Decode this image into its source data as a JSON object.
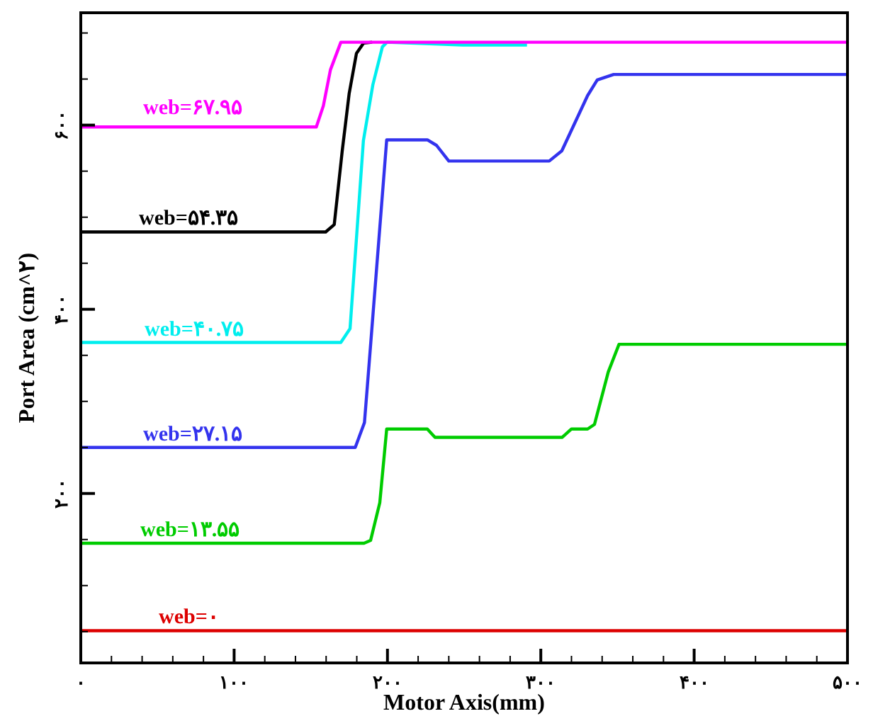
{
  "chart_data": {
    "type": "line",
    "xlabel": "Motor Axis(mm)",
    "ylabel": "Port Area (cm^۲)",
    "xlim": [
      0,
      500
    ],
    "ylim": [
      16,
      722
    ],
    "xticks": [
      {
        "value": 0,
        "label": "۰"
      },
      {
        "value": 20,
        "label": null
      },
      {
        "value": 40,
        "label": null
      },
      {
        "value": 60,
        "label": null
      },
      {
        "value": 80,
        "label": null
      },
      {
        "value": 100,
        "label": "۱۰۰"
      },
      {
        "value": 120,
        "label": null
      },
      {
        "value": 140,
        "label": null
      },
      {
        "value": 160,
        "label": null
      },
      {
        "value": 180,
        "label": null
      },
      {
        "value": 200,
        "label": "۲۰۰"
      },
      {
        "value": 220,
        "label": null
      },
      {
        "value": 240,
        "label": null
      },
      {
        "value": 260,
        "label": null
      },
      {
        "value": 280,
        "label": null
      },
      {
        "value": 300,
        "label": "۳۰۰"
      },
      {
        "value": 320,
        "label": null
      },
      {
        "value": 340,
        "label": null
      },
      {
        "value": 360,
        "label": null
      },
      {
        "value": 380,
        "label": null
      },
      {
        "value": 400,
        "label": "۴۰۰"
      },
      {
        "value": 420,
        "label": null
      },
      {
        "value": 440,
        "label": null
      },
      {
        "value": 460,
        "label": null
      },
      {
        "value": 480,
        "label": null
      },
      {
        "value": 500,
        "label": "۵۰۰"
      }
    ],
    "yticks": [
      {
        "value": 50,
        "label": null
      },
      {
        "value": 100,
        "label": null
      },
      {
        "value": 150,
        "label": null
      },
      {
        "value": 200,
        "label": "۲۰۰"
      },
      {
        "value": 250,
        "label": null
      },
      {
        "value": 300,
        "label": null
      },
      {
        "value": 350,
        "label": null
      },
      {
        "value": 400,
        "label": "۴۰۰"
      },
      {
        "value": 450,
        "label": null
      },
      {
        "value": 500,
        "label": null
      },
      {
        "value": 550,
        "label": null
      },
      {
        "value": 600,
        "label": "۶۰۰"
      },
      {
        "value": 650,
        "label": null
      },
      {
        "value": 700,
        "label": null
      }
    ],
    "grid": false,
    "legend": "left",
    "marker": "none",
    "line_style": "solid",
    "series": [
      {
        "name": "web=۰",
        "color": "#dd0000",
        "x": [
          0,
          500
        ],
        "values": [
          51,
          51
        ]
      },
      {
        "name": "web=۱۳.۵۵",
        "color": "#00cc00",
        "x": [
          0,
          184.7,
          189,
          195,
          199.5,
          226,
          231,
          314,
          320,
          330.5,
          335,
          344,
          351,
          500
        ],
        "values": [
          146,
          146,
          149,
          190,
          270,
          270,
          261,
          261,
          270,
          270,
          275,
          332,
          362,
          362
        ]
      },
      {
        "name": "web=۲۷.۱۵",
        "color": "#3333ee",
        "x": [
          0,
          179,
          185,
          188,
          199.5,
          226,
          232,
          240,
          305.5,
          313.7,
          330.5,
          336.8,
          347.5,
          500
        ],
        "values": [
          250,
          250,
          277,
          340,
          584,
          584,
          578,
          561,
          561,
          572,
          632,
          649,
          655,
          655
        ]
      },
      {
        "name": "web=۴۰.۷۵",
        "color": "#00eeee",
        "x": [
          0,
          169.6,
          175.6,
          184.3,
          190.5,
          196.7,
          199.7,
          249,
          291
        ],
        "values": [
          364,
          364,
          379,
          583,
          644,
          685,
          690,
          687,
          687
        ]
      },
      {
        "name": "web=۵۴.۳۵",
        "color": "#000000",
        "x": [
          0,
          159.7,
          165.3,
          170.5,
          175,
          179.8,
          184.4,
          190
        ],
        "values": [
          484,
          484,
          492,
          572,
          634,
          678,
          689,
          690
        ]
      },
      {
        "name": "web=۶۷.۹۵",
        "color": "#ff00ff",
        "x": [
          0,
          153.6,
          158.2,
          162.8,
          169.6,
          500
        ],
        "values": [
          598,
          598,
          621,
          660,
          690,
          690
        ]
      }
    ]
  }
}
